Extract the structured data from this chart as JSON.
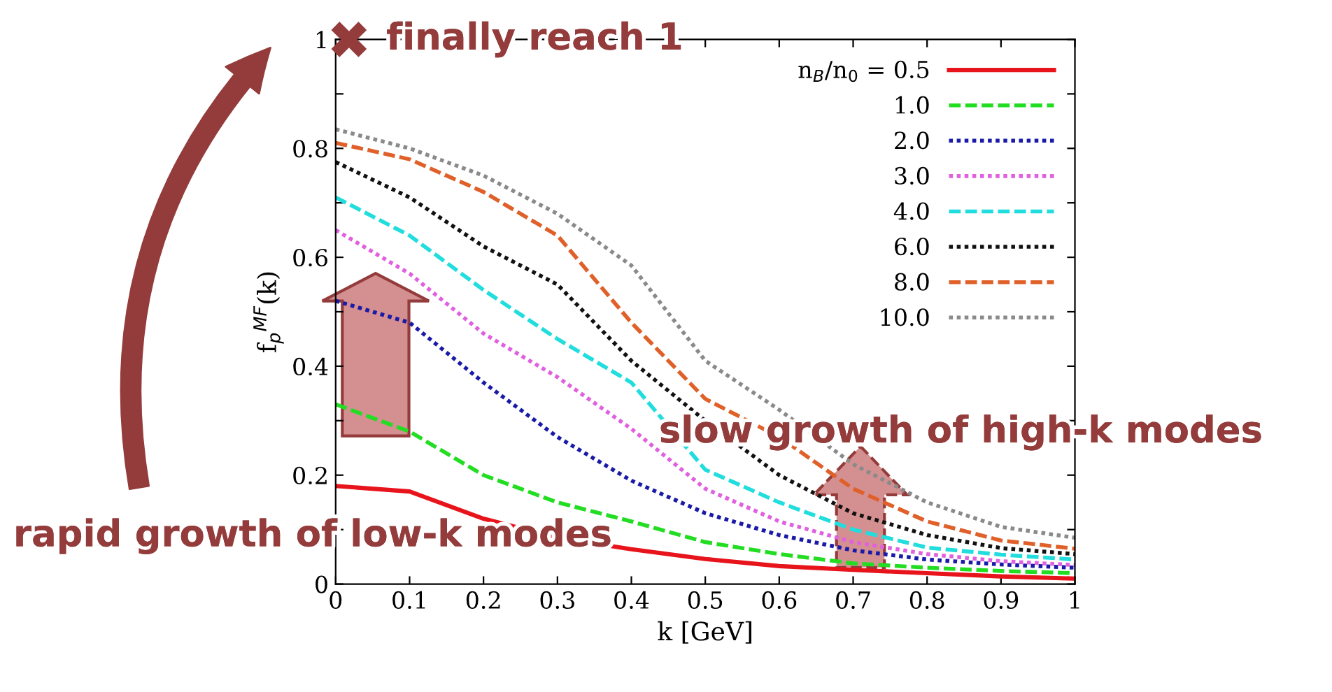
{
  "chart_data": {
    "type": "line",
    "xlabel": "k [GeV]",
    "ylabel": "f$_{p}$$^{MF}$(k)",
    "x": [
      0,
      0.1,
      0.2,
      0.3,
      0.4,
      0.5,
      0.6,
      0.7,
      0.8,
      0.9,
      1
    ],
    "series": [
      {
        "name": "n$_{B}$/n$_{0}$ = 0.5",
        "color": "#e8141c",
        "line_style": "solid",
        "values": [
          0.18,
          0.17,
          0.12,
          0.085,
          0.064,
          0.046,
          0.033,
          0.026,
          0.02,
          0.014,
          0.01
        ]
      },
      {
        "name": "1.0",
        "color": "#22dd22",
        "line_style": "dashed",
        "values": [
          0.33,
          0.28,
          0.2,
          0.15,
          0.115,
          0.077,
          0.055,
          0.038,
          0.03,
          0.024,
          0.02
        ]
      },
      {
        "name": "2.0",
        "color": "#1a1aa8",
        "line_style": "dotted",
        "values": [
          0.52,
          0.48,
          0.37,
          0.27,
          0.19,
          0.13,
          0.09,
          0.062,
          0.045,
          0.036,
          0.03
        ]
      },
      {
        "name": "3.0",
        "color": "#e060e0",
        "line_style": "dotted",
        "values": [
          0.65,
          0.57,
          0.46,
          0.38,
          0.285,
          0.175,
          0.115,
          0.077,
          0.055,
          0.042,
          0.035
        ]
      },
      {
        "name": "4.0",
        "color": "#22dddd",
        "line_style": "dashed",
        "values": [
          0.71,
          0.64,
          0.54,
          0.45,
          0.37,
          0.21,
          0.15,
          0.1,
          0.067,
          0.054,
          0.045
        ]
      },
      {
        "name": "6.0",
        "color": "#111111",
        "line_style": "dotted",
        "values": [
          0.775,
          0.71,
          0.62,
          0.55,
          0.41,
          0.3,
          0.2,
          0.13,
          0.09,
          0.066,
          0.055
        ]
      },
      {
        "name": "8.0",
        "color": "#e0602a",
        "line_style": "dashed",
        "values": [
          0.81,
          0.78,
          0.72,
          0.64,
          0.48,
          0.34,
          0.27,
          0.175,
          0.115,
          0.08,
          0.065
        ]
      },
      {
        "name": "10.0",
        "color": "#8a8a8a",
        "line_style": "dotted",
        "values": [
          0.835,
          0.8,
          0.75,
          0.68,
          0.585,
          0.41,
          0.32,
          0.22,
          0.15,
          0.105,
          0.085
        ]
      }
    ],
    "xlim": [
      0,
      1
    ],
    "ylim": [
      0,
      1
    ],
    "xticks": [
      0,
      0.1,
      0.2,
      0.3,
      0.4,
      0.5,
      0.6,
      0.7,
      0.8,
      0.9,
      1
    ],
    "yticks": [
      0,
      {
        "value": 0.1,
        "label": null
      },
      0.2,
      {
        "value": 0.3,
        "label": null
      },
      0.4,
      {
        "value": 0.5,
        "label": null
      },
      0.6,
      {
        "value": 0.7,
        "label": null
      },
      0.8,
      {
        "value": 0.9,
        "label": null
      },
      1
    ],
    "legend": "top right",
    "grid": false,
    "annotations": [
      "finally reach 1",
      "slow growth of high-k modes",
      "rapid growth of low-k modes"
    ]
  }
}
